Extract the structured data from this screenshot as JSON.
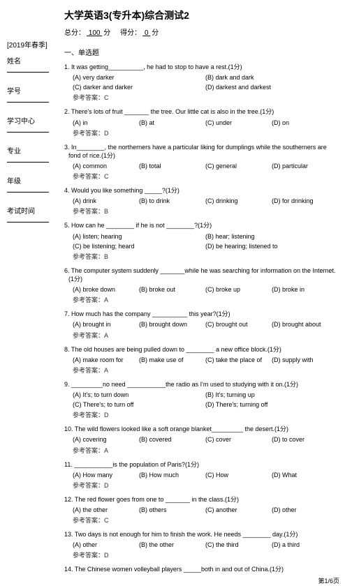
{
  "title": "大学英语3(专升本)综合测试2",
  "total_label": "总分：",
  "total_score": "100",
  "total_unit": " 分",
  "got_label": "得分：",
  "got_score": "0",
  "got_unit": " 分",
  "term": "[2019年春季]",
  "sidebar_fields": [
    "姓名",
    "学号",
    "学习中心",
    "专业",
    "年级",
    "考试时间"
  ],
  "section": "一、单选题",
  "answer_label": "参考答案：",
  "footer": "第1/6页",
  "questions": [
    {
      "n": "1. It was getting__________, he had to stop to have a rest.(1分)",
      "opts": [
        {
          "a": "(A) very darker",
          "b": "(B) dark and dark"
        },
        {
          "a": "(C) darker and darker",
          "b": "(D) darkest and darkest"
        }
      ],
      "cols": 2,
      "ans": "C"
    },
    {
      "n": "2. There's lots of fruit _______ the tree. Our little cat is also in the tree.(1分)",
      "opts": [
        {
          "a": "(A) in",
          "b": "(B) at",
          "c": "(C) under",
          "d": "(D) on"
        }
      ],
      "cols": 4,
      "ans": "D"
    },
    {
      "n": "3. In________, the northerners have a particular liking for dumplings while the southerners are fond of rice.(1分)",
      "opts": [
        {
          "a": "(A) common",
          "b": "(B) total",
          "c": "(C) general",
          "d": "(D) particular"
        }
      ],
      "cols": 4,
      "ans": "C"
    },
    {
      "n": "4. Would you like something _____?(1分)",
      "opts": [
        {
          "a": "(A) drink",
          "b": "(B) to drink",
          "c": "(C) drinking",
          "d": "(D) for drinking"
        }
      ],
      "cols": 4,
      "ans": "B"
    },
    {
      "n": "5. How can he ________ if he is not ________?(1分)",
      "opts": [
        {
          "a": "(A) listen; hearing",
          "b": "(B) hear; listening"
        },
        {
          "a": "(C) be listening; heard",
          "b": "(D) be hearing; listened to"
        }
      ],
      "cols": 2,
      "ans": "B"
    },
    {
      "n": "6. The computer system suddenly _______while he was searching for information on the Internet.(1分)",
      "opts": [
        {
          "a": "(A) broke down",
          "b": "(B) broke out",
          "c": "(C) broke up",
          "d": "(D) broke in"
        }
      ],
      "cols": 4,
      "ans": "A"
    },
    {
      "n": "7.  How much has the company __________ this year?(1分)",
      "opts": [
        {
          "a": "(A) brought in",
          "b": "(B) brought down",
          "c": "(C) brought out",
          "d": "(D) brought about"
        }
      ],
      "cols": 4,
      "ans": "A"
    },
    {
      "n": "8. The old houses are being pulled down to ________ a new office block.(1分)",
      "opts": [
        {
          "a": "(A) make room for",
          "b": "(B) make use of",
          "c": "(C) take the place of",
          "d": "(D) supply with"
        }
      ],
      "cols": 4,
      "ans": "A"
    },
    {
      "n": "9. _________no need ___________the radio as I'm used to studying with it on.(1分)",
      "opts": [
        {
          "a": "(A) It's; to turn down",
          "b": "(B) It's; turning up"
        },
        {
          "a": "(C) There's; to turn off",
          "b": "(D) There's; turning off"
        }
      ],
      "cols": 2,
      "ans": "D"
    },
    {
      "n": "10. The wild flowers looked like a soft orange blanket_________ the desert.(1分)",
      "opts": [
        {
          "a": "(A) covering",
          "b": "(B) covered",
          "c": "(C) cover",
          "d": "(D) to cover"
        }
      ],
      "cols": 4,
      "ans": "A"
    },
    {
      "n": "11.  ___________is the population of Paris?(1分)",
      "opts": [
        {
          "a": "(A) How many",
          "b": "(B) How much",
          "c": "(C) How",
          "d": "(D) What"
        }
      ],
      "cols": 4,
      "ans": "D"
    },
    {
      "n": "12. The red flower goes from one to _______ in the class.(1分)",
      "opts": [
        {
          "a": "(A) the other",
          "b": "(B) others",
          "c": "(C) another",
          "d": "(D) other"
        }
      ],
      "cols": 4,
      "ans": "C"
    },
    {
      "n": "13. Two days is not enough for him to finish the work. He needs ________ day.(1分)",
      "opts": [
        {
          "a": "(A) other",
          "b": "(B) the other",
          "c": "(C) the third",
          "d": "(D) a third"
        }
      ],
      "cols": 4,
      "ans": "D"
    },
    {
      "n": "14. The Chinese women volleyball players _____both in and out of China.(1分)",
      "opts": [],
      "cols": 0,
      "ans": null
    }
  ]
}
